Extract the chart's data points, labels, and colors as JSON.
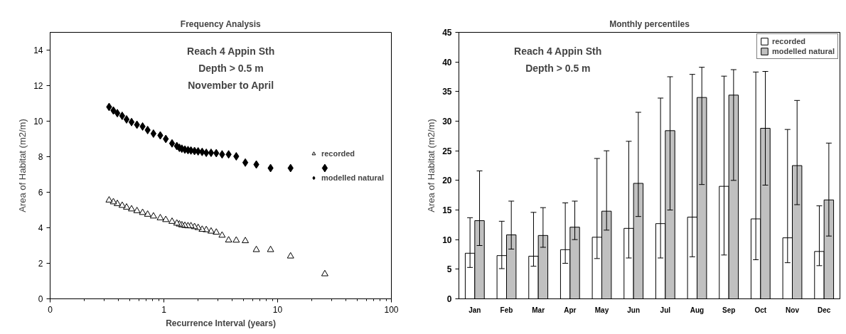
{
  "chart_data": [
    {
      "type": "scatter",
      "title": "Frequency Analysis",
      "xlabel": "Recurrence Interval (years)",
      "ylabel": "Area of Habitat (m2/m)",
      "annotations": [
        "Reach 4 Appin Sth",
        "Depth > 0.5 m",
        "November to April"
      ],
      "log": "x",
      "xlim": [
        0.1,
        100
      ],
      "xticks": [
        {
          "value": 0.1,
          "label": "0"
        },
        1,
        10,
        100
      ],
      "ylim": [
        0,
        15
      ],
      "yticks": [
        0,
        2,
        4,
        6,
        8,
        10,
        12,
        14
      ],
      "legend": "right",
      "x": [
        26,
        13,
        8.67,
        6.5,
        5.2,
        4.33,
        3.71,
        3.25,
        2.89,
        2.6,
        2.36,
        2.17,
        2,
        1.86,
        1.73,
        1.63,
        1.53,
        1.44,
        1.37,
        1.3,
        1.18,
        1.04,
        0.93,
        0.81,
        0.72,
        0.65,
        0.58,
        0.52,
        0.47,
        0.43,
        0.39,
        0.36,
        0.33
      ],
      "series": [
        {
          "name": "recorded",
          "color": "#000000",
          "marker": "triangle",
          "values": [
            1.4,
            2.4,
            2.76,
            2.76,
            3.26,
            3.29,
            3.3,
            3.57,
            3.74,
            3.8,
            3.88,
            3.9,
            4.0,
            4.05,
            4.1,
            4.1,
            4.12,
            4.15,
            4.2,
            4.25,
            4.35,
            4.45,
            4.55,
            4.65,
            4.75,
            4.85,
            4.95,
            5.05,
            5.15,
            5.25,
            5.35,
            5.45,
            5.55
          ]
        },
        {
          "name": "modelled natural",
          "color": "#000000",
          "marker": "diamond",
          "values": [
            7.36,
            7.36,
            7.36,
            7.56,
            7.67,
            8.02,
            8.13,
            8.13,
            8.2,
            8.22,
            8.22,
            8.27,
            8.3,
            8.32,
            8.35,
            8.37,
            8.4,
            8.45,
            8.5,
            8.6,
            8.75,
            9.0,
            9.2,
            9.3,
            9.5,
            9.7,
            9.8,
            9.95,
            10.1,
            10.3,
            10.45,
            10.6,
            10.8
          ]
        }
      ]
    },
    {
      "type": "bar",
      "title": "Monthly percentiles",
      "ylabel": "Area of Habitat (m2/m)",
      "annotations": [
        "Reach 4 Appin Sth",
        "Depth > 0.5 m"
      ],
      "ylim": [
        0,
        45
      ],
      "yticks": [
        0,
        5,
        10,
        15,
        20,
        25,
        30,
        35,
        40,
        45
      ],
      "legend": "top right",
      "categories": [
        "Jan",
        "Feb",
        "Mar",
        "Apr",
        "May",
        "Jun",
        "Jul",
        "Aug",
        "Sep",
        "Oct",
        "Nov",
        "Dec"
      ],
      "series": [
        {
          "name": "recorded",
          "color": "#ffffff",
          "values": [
            7.7,
            7.3,
            7.2,
            8.3,
            10.4,
            11.9,
            12.7,
            13.8,
            19.0,
            13.5,
            10.3,
            8.0
          ],
          "errors": [
            [
              5.3,
              13.7
            ],
            [
              5.1,
              13.1
            ],
            [
              5.5,
              14.6
            ],
            [
              6.0,
              16.2
            ],
            [
              6.8,
              23.7
            ],
            [
              6.9,
              26.6
            ],
            [
              6.9,
              33.9
            ],
            [
              7.1,
              37.9
            ],
            [
              7.4,
              37.6
            ],
            [
              6.6,
              38.3
            ],
            [
              6.1,
              28.6
            ],
            [
              5.6,
              15.7
            ]
          ]
        },
        {
          "name": "modelled natural",
          "color": "#c0c0c0",
          "values": [
            13.2,
            10.8,
            10.7,
            12.1,
            14.8,
            19.5,
            28.4,
            34.0,
            34.4,
            28.8,
            22.5,
            16.7
          ],
          "errors": [
            [
              9.0,
              21.6
            ],
            [
              8.4,
              16.5
            ],
            [
              8.7,
              15.4
            ],
            [
              10.0,
              16.5
            ],
            [
              11.6,
              25.0
            ],
            [
              13.9,
              31.5
            ],
            [
              15.0,
              37.5
            ],
            [
              19.3,
              39.1
            ],
            [
              20.0,
              38.7
            ],
            [
              19.2,
              38.4
            ],
            [
              15.9,
              33.5
            ],
            [
              10.6,
              26.3
            ]
          ]
        }
      ]
    }
  ]
}
